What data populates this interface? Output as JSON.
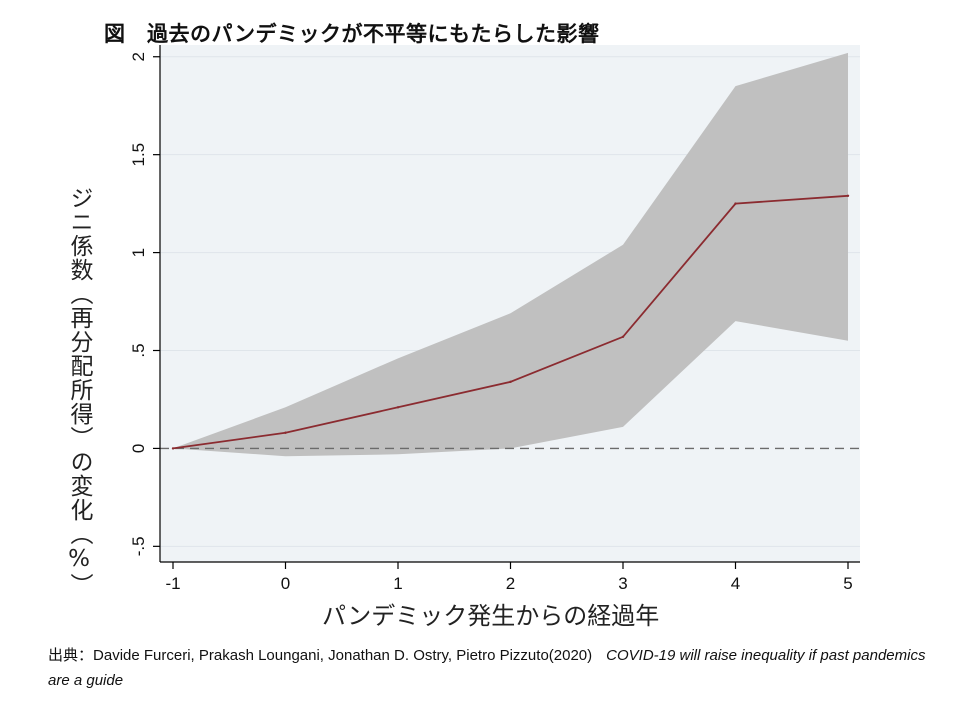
{
  "title": "図　過去のパンデミックが不平等にもたらした影響",
  "source": {
    "prefix": "出典：",
    "authors": "Davide Furceri, Prakash Loungani, Jonathan D. Ostry, Pietro Pizzuto(2020)",
    "publication": "COVID-19 will raise inequality if past pandemics are a guide"
  },
  "chart_data": {
    "type": "line",
    "title": "図　過去のパンデミックが不平等にもたらした影響",
    "xlabel": "パンデミック発生からの経過年",
    "ylabel": "ジニ係数（再分配所得）の変化（%）",
    "x": [
      -1,
      0,
      1,
      2,
      3,
      4,
      5
    ],
    "xticks": [
      "-1",
      "0",
      "1",
      "2",
      "3",
      "4",
      "5"
    ],
    "yticks": [
      "-.5",
      "0",
      ".5",
      "1",
      "1.5",
      "2"
    ],
    "ytick_values": [
      -0.5,
      0,
      0.5,
      1,
      1.5,
      2
    ],
    "xlim": [
      -1,
      5
    ],
    "ylim": [
      -0.58,
      2.06
    ],
    "series": [
      {
        "values": [
          0,
          0.08,
          0.21,
          0.34,
          0.57,
          1.25,
          1.29
        ]
      }
    ],
    "confidence_band": {
      "upper": [
        0,
        0.21,
        0.46,
        0.69,
        1.04,
        1.85,
        2.02
      ],
      "lower": [
        0,
        -0.04,
        -0.03,
        0.0,
        0.11,
        0.65,
        0.55
      ]
    },
    "reference_line": {
      "y": 0,
      "style": "dashed"
    },
    "grid": true,
    "colors": {
      "line": "#8b2b30",
      "band": "#c0c0c0",
      "plot_background": "#eff3f6",
      "grid": "#dfe5ea",
      "reference": "#6b6b6b"
    }
  }
}
